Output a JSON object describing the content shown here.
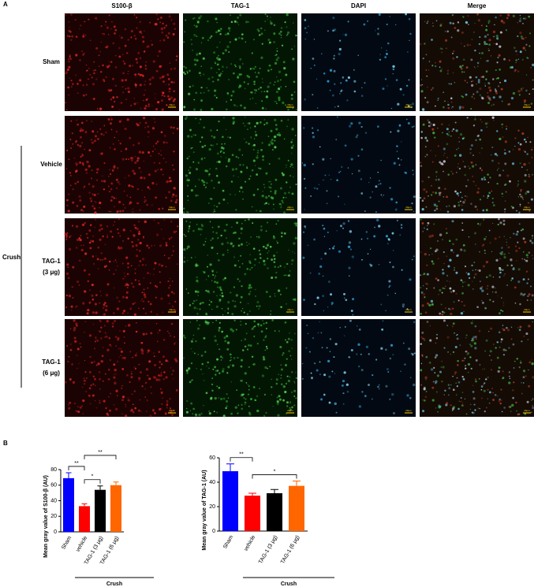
{
  "panel_a": {
    "label": "A",
    "columns": [
      "S100-β",
      "TAG-1",
      "DAPI",
      "Merge"
    ],
    "rows": [
      {
        "lines": [
          "Sham"
        ]
      },
      {
        "lines": [
          "Vehicle"
        ]
      },
      {
        "lines": [
          "TAG-1",
          "(3 μg)"
        ]
      },
      {
        "lines": [
          "TAG-1",
          "(6 μg)"
        ]
      }
    ],
    "group": "Crush",
    "scale_bar": "20μm"
  },
  "panel_b_label": "B",
  "chart_data": [
    {
      "type": "bar",
      "y_label": "Mean gray value of S100-β (AU)",
      "categories": [
        "Sham",
        "vehicle",
        "TAG-1 (3 μg)",
        "TAG-1 (6 μg)"
      ],
      "values": [
        69,
        33,
        54,
        60
      ],
      "errors": [
        7,
        3,
        5,
        4
      ],
      "colors": [
        "#0000ff",
        "#ff0000",
        "#000000",
        "#ff6600"
      ],
      "ylim": [
        0,
        80
      ],
      "yticks": [
        0,
        20,
        40,
        60,
        80
      ],
      "annotations": [
        {
          "text": "**",
          "between": [
            "Sham",
            "vehicle"
          ]
        },
        {
          "text": "*",
          "between": [
            "vehicle",
            "TAG-1 (3 μg)"
          ]
        },
        {
          "text": "**",
          "between": [
            "vehicle",
            "TAG-1 (6 μg)"
          ]
        }
      ],
      "group": {
        "label": "Crush",
        "from": "vehicle",
        "to": "TAG-1 (6 μg)"
      }
    },
    {
      "type": "bar",
      "y_label": "Mean gray value of TAG-1 (AU)",
      "categories": [
        "Sham",
        "vehicle",
        "TAG-1 (3 μg)",
        "TAG-1 (6 μg)"
      ],
      "values": [
        49,
        29,
        31,
        37
      ],
      "errors": [
        6,
        2,
        3,
        4
      ],
      "colors": [
        "#0000ff",
        "#ff0000",
        "#000000",
        "#ff6600"
      ],
      "ylim": [
        0,
        60
      ],
      "yticks": [
        0,
        20,
        40,
        60
      ],
      "annotations": [
        {
          "text": "**",
          "between": [
            "Sham",
            "vehicle"
          ]
        },
        {
          "text": "*",
          "between": [
            "vehicle",
            "TAG-1 (6 μg)"
          ]
        }
      ],
      "group": {
        "label": "Crush",
        "from": "vehicle",
        "to": "TAG-1 (6 μg)"
      }
    }
  ]
}
